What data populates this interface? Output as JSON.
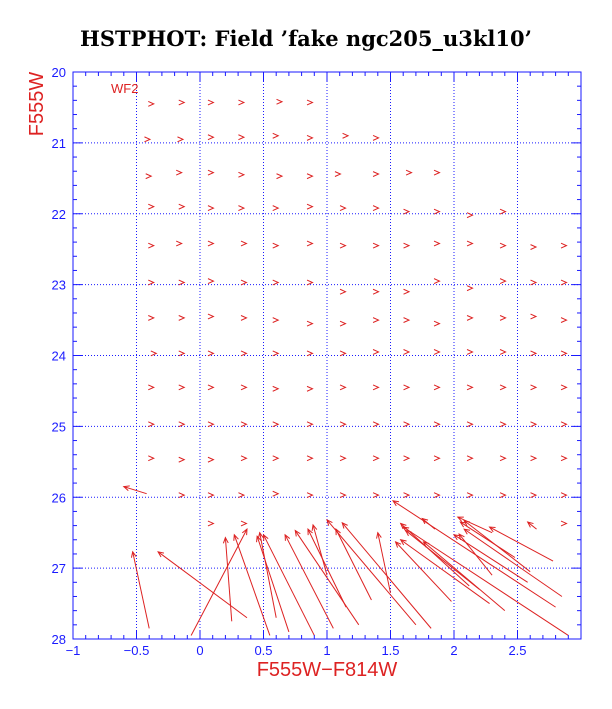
{
  "chart_data": {
    "type": "vector-field",
    "title": "HSTPHOT: Field ’fake ngc205_u3kl10’",
    "xlabel": "F555W−F814W",
    "ylabel": "F555W",
    "panel_label": "WF2",
    "xlim": [
      -1.0,
      3.0
    ],
    "ylim": [
      28.0,
      20.0
    ],
    "y_inverted": true,
    "grid": true,
    "x_ticks": [
      -1,
      -0.5,
      0,
      0.5,
      1,
      1.5,
      2,
      2.5
    ],
    "x_tick_labels": [
      "−1",
      "−0.5",
      "0",
      "0.5",
      "1",
      "1.5",
      "2",
      "2.5"
    ],
    "y_ticks": [
      20,
      21,
      22,
      23,
      24,
      25,
      26,
      27,
      28
    ],
    "y_tick_labels": [
      "20",
      "21",
      "22",
      "23",
      "24",
      "25",
      "26",
      "27",
      "28"
    ],
    "colors": {
      "arrows": "#dd2222",
      "axes": "#1a1aff",
      "labels": "#dd2222",
      "grid": "#1a1aff"
    },
    "arrows": [
      {
        "x0": -0.38,
        "y0": 20.45,
        "x1": -0.38,
        "y1": 20.45
      },
      {
        "x0": -0.14,
        "y0": 20.43,
        "x1": -0.14,
        "y1": 20.43
      },
      {
        "x0": 0.09,
        "y0": 20.43,
        "x1": 0.09,
        "y1": 20.43
      },
      {
        "x0": 0.33,
        "y0": 20.43,
        "x1": 0.33,
        "y1": 20.43
      },
      {
        "x0": 0.63,
        "y0": 20.42,
        "x1": 0.63,
        "y1": 20.42
      },
      {
        "x0": 0.87,
        "y0": 20.43,
        "x1": 0.87,
        "y1": 20.43
      },
      {
        "x0": -0.41,
        "y0": 20.95,
        "x1": -0.41,
        "y1": 20.95
      },
      {
        "x0": -0.15,
        "y0": 20.95,
        "x1": -0.15,
        "y1": 20.95
      },
      {
        "x0": 0.09,
        "y0": 20.92,
        "x1": 0.09,
        "y1": 20.92
      },
      {
        "x0": 0.33,
        "y0": 20.92,
        "x1": 0.33,
        "y1": 20.92
      },
      {
        "x0": 0.6,
        "y0": 20.9,
        "x1": 0.6,
        "y1": 20.9
      },
      {
        "x0": 0.87,
        "y0": 20.93,
        "x1": 0.87,
        "y1": 20.93
      },
      {
        "x0": 1.15,
        "y0": 20.9,
        "x1": 1.15,
        "y1": 20.9
      },
      {
        "x0": 1.39,
        "y0": 20.93,
        "x1": 1.39,
        "y1": 20.93
      },
      {
        "x0": -0.4,
        "y0": 21.47,
        "x1": -0.4,
        "y1": 21.47
      },
      {
        "x0": -0.16,
        "y0": 21.42,
        "x1": -0.16,
        "y1": 21.42
      },
      {
        "x0": 0.09,
        "y0": 21.42,
        "x1": 0.09,
        "y1": 21.42
      },
      {
        "x0": 0.33,
        "y0": 21.45,
        "x1": 0.33,
        "y1": 21.45
      },
      {
        "x0": 0.63,
        "y0": 21.47,
        "x1": 0.63,
        "y1": 21.47
      },
      {
        "x0": 0.87,
        "y0": 21.47,
        "x1": 0.87,
        "y1": 21.47
      },
      {
        "x0": 1.09,
        "y0": 21.44,
        "x1": 1.09,
        "y1": 21.44
      },
      {
        "x0": 1.39,
        "y0": 21.44,
        "x1": 1.39,
        "y1": 21.44
      },
      {
        "x0": 1.65,
        "y0": 21.42,
        "x1": 1.65,
        "y1": 21.42
      },
      {
        "x0": 1.87,
        "y0": 21.42,
        "x1": 1.87,
        "y1": 21.42
      },
      {
        "x0": -0.38,
        "y0": 21.9,
        "x1": -0.38,
        "y1": 21.9
      },
      {
        "x0": -0.14,
        "y0": 21.9,
        "x1": -0.14,
        "y1": 21.9
      },
      {
        "x0": 0.09,
        "y0": 21.92,
        "x1": 0.09,
        "y1": 21.92
      },
      {
        "x0": 0.33,
        "y0": 21.92,
        "x1": 0.33,
        "y1": 21.92
      },
      {
        "x0": 0.6,
        "y0": 21.92,
        "x1": 0.6,
        "y1": 21.92
      },
      {
        "x0": 0.87,
        "y0": 21.9,
        "x1": 0.87,
        "y1": 21.9
      },
      {
        "x0": 1.13,
        "y0": 21.92,
        "x1": 1.13,
        "y1": 21.92
      },
      {
        "x0": 1.39,
        "y0": 21.92,
        "x1": 1.39,
        "y1": 21.92
      },
      {
        "x0": 1.63,
        "y0": 21.97,
        "x1": 1.63,
        "y1": 21.97
      },
      {
        "x0": 1.87,
        "y0": 21.97,
        "x1": 1.87,
        "y1": 21.97
      },
      {
        "x0": 2.13,
        "y0": 22.02,
        "x1": 2.13,
        "y1": 22.02
      },
      {
        "x0": 2.39,
        "y0": 21.97,
        "x1": 2.39,
        "y1": 21.97
      },
      {
        "x0": -0.38,
        "y0": 22.45,
        "x1": -0.38,
        "y1": 22.45
      },
      {
        "x0": -0.16,
        "y0": 22.42,
        "x1": -0.16,
        "y1": 22.42
      },
      {
        "x0": 0.09,
        "y0": 22.42,
        "x1": 0.09,
        "y1": 22.42
      },
      {
        "x0": 0.35,
        "y0": 22.42,
        "x1": 0.35,
        "y1": 22.42
      },
      {
        "x0": 0.6,
        "y0": 22.45,
        "x1": 0.6,
        "y1": 22.45
      },
      {
        "x0": 0.87,
        "y0": 22.42,
        "x1": 0.87,
        "y1": 22.42
      },
      {
        "x0": 1.13,
        "y0": 22.45,
        "x1": 1.13,
        "y1": 22.45
      },
      {
        "x0": 1.39,
        "y0": 22.45,
        "x1": 1.39,
        "y1": 22.45
      },
      {
        "x0": 1.63,
        "y0": 22.45,
        "x1": 1.63,
        "y1": 22.45
      },
      {
        "x0": 1.87,
        "y0": 22.42,
        "x1": 1.87,
        "y1": 22.42
      },
      {
        "x0": 2.13,
        "y0": 22.42,
        "x1": 2.13,
        "y1": 22.42
      },
      {
        "x0": 2.39,
        "y0": 22.45,
        "x1": 2.39,
        "y1": 22.45
      },
      {
        "x0": 2.63,
        "y0": 22.47,
        "x1": 2.63,
        "y1": 22.47
      },
      {
        "x0": 2.87,
        "y0": 22.45,
        "x1": 2.87,
        "y1": 22.45
      },
      {
        "x0": -0.38,
        "y0": 22.97,
        "x1": -0.38,
        "y1": 22.97
      },
      {
        "x0": -0.14,
        "y0": 22.97,
        "x1": -0.14,
        "y1": 22.97
      },
      {
        "x0": 0.09,
        "y0": 22.95,
        "x1": 0.09,
        "y1": 22.95
      },
      {
        "x0": 0.35,
        "y0": 22.97,
        "x1": 0.35,
        "y1": 22.97
      },
      {
        "x0": 0.6,
        "y0": 22.97,
        "x1": 0.6,
        "y1": 22.97
      },
      {
        "x0": 0.87,
        "y0": 22.97,
        "x1": 0.87,
        "y1": 22.97
      },
      {
        "x0": 1.13,
        "y0": 23.1,
        "x1": 1.13,
        "y1": 23.1
      },
      {
        "x0": 1.39,
        "y0": 23.1,
        "x1": 1.39,
        "y1": 23.1
      },
      {
        "x0": 1.63,
        "y0": 23.1,
        "x1": 1.63,
        "y1": 23.1
      },
      {
        "x0": 1.87,
        "y0": 22.95,
        "x1": 1.87,
        "y1": 22.95
      },
      {
        "x0": 2.13,
        "y0": 23.05,
        "x1": 2.13,
        "y1": 23.05
      },
      {
        "x0": 2.39,
        "y0": 22.95,
        "x1": 2.39,
        "y1": 22.95
      },
      {
        "x0": 2.63,
        "y0": 22.97,
        "x1": 2.63,
        "y1": 22.97
      },
      {
        "x0": 2.87,
        "y0": 22.97,
        "x1": 2.87,
        "y1": 22.97
      },
      {
        "x0": -0.38,
        "y0": 23.47,
        "x1": -0.38,
        "y1": 23.47
      },
      {
        "x0": -0.14,
        "y0": 23.47,
        "x1": -0.14,
        "y1": 23.47
      },
      {
        "x0": 0.09,
        "y0": 23.45,
        "x1": 0.09,
        "y1": 23.45
      },
      {
        "x0": 0.35,
        "y0": 23.47,
        "x1": 0.35,
        "y1": 23.47
      },
      {
        "x0": 0.6,
        "y0": 23.5,
        "x1": 0.6,
        "y1": 23.5
      },
      {
        "x0": 0.87,
        "y0": 23.55,
        "x1": 0.87,
        "y1": 23.55
      },
      {
        "x0": 1.13,
        "y0": 23.55,
        "x1": 1.13,
        "y1": 23.55
      },
      {
        "x0": 1.39,
        "y0": 23.5,
        "x1": 1.39,
        "y1": 23.5
      },
      {
        "x0": 1.63,
        "y0": 23.5,
        "x1": 1.63,
        "y1": 23.5
      },
      {
        "x0": 1.87,
        "y0": 23.55,
        "x1": 1.87,
        "y1": 23.55
      },
      {
        "x0": 2.13,
        "y0": 23.47,
        "x1": 2.13,
        "y1": 23.47
      },
      {
        "x0": 2.39,
        "y0": 23.47,
        "x1": 2.39,
        "y1": 23.47
      },
      {
        "x0": 2.63,
        "y0": 23.45,
        "x1": 2.63,
        "y1": 23.45
      },
      {
        "x0": 2.87,
        "y0": 23.5,
        "x1": 2.87,
        "y1": 23.5
      },
      {
        "x0": -0.36,
        "y0": 23.97,
        "x1": -0.36,
        "y1": 23.97
      },
      {
        "x0": -0.14,
        "y0": 23.97,
        "x1": -0.14,
        "y1": 23.97
      },
      {
        "x0": 0.09,
        "y0": 23.97,
        "x1": 0.09,
        "y1": 23.97
      },
      {
        "x0": 0.35,
        "y0": 23.97,
        "x1": 0.35,
        "y1": 23.97
      },
      {
        "x0": 0.6,
        "y0": 23.97,
        "x1": 0.6,
        "y1": 23.97
      },
      {
        "x0": 0.87,
        "y0": 23.97,
        "x1": 0.87,
        "y1": 23.97
      },
      {
        "x0": 1.13,
        "y0": 23.97,
        "x1": 1.13,
        "y1": 23.97
      },
      {
        "x0": 1.39,
        "y0": 23.95,
        "x1": 1.39,
        "y1": 23.95
      },
      {
        "x0": 1.63,
        "y0": 23.95,
        "x1": 1.63,
        "y1": 23.95
      },
      {
        "x0": 1.87,
        "y0": 23.95,
        "x1": 1.87,
        "y1": 23.95
      },
      {
        "x0": 2.13,
        "y0": 23.95,
        "x1": 2.13,
        "y1": 23.95
      },
      {
        "x0": 2.39,
        "y0": 23.95,
        "x1": 2.39,
        "y1": 23.95
      },
      {
        "x0": 2.63,
        "y0": 23.97,
        "x1": 2.63,
        "y1": 23.97
      },
      {
        "x0": 2.87,
        "y0": 23.97,
        "x1": 2.87,
        "y1": 23.97
      },
      {
        "x0": -0.38,
        "y0": 24.45,
        "x1": -0.38,
        "y1": 24.45
      },
      {
        "x0": -0.14,
        "y0": 24.45,
        "x1": -0.14,
        "y1": 24.45
      },
      {
        "x0": 0.09,
        "y0": 24.45,
        "x1": 0.09,
        "y1": 24.45
      },
      {
        "x0": 0.35,
        "y0": 24.45,
        "x1": 0.35,
        "y1": 24.45
      },
      {
        "x0": 0.6,
        "y0": 24.47,
        "x1": 0.6,
        "y1": 24.47
      },
      {
        "x0": 0.87,
        "y0": 24.47,
        "x1": 0.87,
        "y1": 24.47
      },
      {
        "x0": 1.13,
        "y0": 24.45,
        "x1": 1.13,
        "y1": 24.45
      },
      {
        "x0": 1.39,
        "y0": 24.45,
        "x1": 1.39,
        "y1": 24.45
      },
      {
        "x0": 1.63,
        "y0": 24.45,
        "x1": 1.63,
        "y1": 24.45
      },
      {
        "x0": 1.87,
        "y0": 24.45,
        "x1": 1.87,
        "y1": 24.45
      },
      {
        "x0": 2.13,
        "y0": 24.45,
        "x1": 2.13,
        "y1": 24.45
      },
      {
        "x0": 2.39,
        "y0": 24.45,
        "x1": 2.39,
        "y1": 24.45
      },
      {
        "x0": 2.63,
        "y0": 24.45,
        "x1": 2.63,
        "y1": 24.45
      },
      {
        "x0": 2.87,
        "y0": 24.45,
        "x1": 2.87,
        "y1": 24.45
      },
      {
        "x0": -0.38,
        "y0": 24.97,
        "x1": -0.38,
        "y1": 24.97
      },
      {
        "x0": -0.14,
        "y0": 24.97,
        "x1": -0.14,
        "y1": 24.97
      },
      {
        "x0": 0.09,
        "y0": 24.97,
        "x1": 0.09,
        "y1": 24.97
      },
      {
        "x0": 0.35,
        "y0": 24.97,
        "x1": 0.35,
        "y1": 24.97
      },
      {
        "x0": 0.6,
        "y0": 24.97,
        "x1": 0.6,
        "y1": 24.97
      },
      {
        "x0": 0.87,
        "y0": 24.97,
        "x1": 0.87,
        "y1": 24.97
      },
      {
        "x0": 1.13,
        "y0": 24.97,
        "x1": 1.13,
        "y1": 24.97
      },
      {
        "x0": 1.39,
        "y0": 24.97,
        "x1": 1.39,
        "y1": 24.97
      },
      {
        "x0": 1.63,
        "y0": 24.97,
        "x1": 1.63,
        "y1": 24.97
      },
      {
        "x0": 1.87,
        "y0": 24.97,
        "x1": 1.87,
        "y1": 24.97
      },
      {
        "x0": 2.13,
        "y0": 24.97,
        "x1": 2.13,
        "y1": 24.97
      },
      {
        "x0": 2.39,
        "y0": 24.97,
        "x1": 2.39,
        "y1": 24.97
      },
      {
        "x0": 2.63,
        "y0": 24.97,
        "x1": 2.63,
        "y1": 24.97
      },
      {
        "x0": 2.87,
        "y0": 24.97,
        "x1": 2.87,
        "y1": 24.97
      },
      {
        "x0": -0.38,
        "y0": 25.45,
        "x1": -0.38,
        "y1": 25.45
      },
      {
        "x0": -0.14,
        "y0": 25.47,
        "x1": -0.14,
        "y1": 25.47
      },
      {
        "x0": 0.09,
        "y0": 25.47,
        "x1": 0.09,
        "y1": 25.47
      },
      {
        "x0": 0.35,
        "y0": 25.45,
        "x1": 0.35,
        "y1": 25.45
      },
      {
        "x0": 0.6,
        "y0": 25.45,
        "x1": 0.6,
        "y1": 25.45
      },
      {
        "x0": 0.87,
        "y0": 25.45,
        "x1": 0.87,
        "y1": 25.45
      },
      {
        "x0": 1.13,
        "y0": 25.45,
        "x1": 1.13,
        "y1": 25.45
      },
      {
        "x0": 1.39,
        "y0": 25.45,
        "x1": 1.39,
        "y1": 25.45
      },
      {
        "x0": 1.63,
        "y0": 25.45,
        "x1": 1.63,
        "y1": 25.45
      },
      {
        "x0": 1.87,
        "y0": 25.45,
        "x1": 1.87,
        "y1": 25.45
      },
      {
        "x0": 2.13,
        "y0": 25.45,
        "x1": 2.13,
        "y1": 25.45
      },
      {
        "x0": 2.39,
        "y0": 25.45,
        "x1": 2.39,
        "y1": 25.45
      },
      {
        "x0": 2.63,
        "y0": 25.45,
        "x1": 2.63,
        "y1": 25.45
      },
      {
        "x0": 2.87,
        "y0": 25.45,
        "x1": 2.87,
        "y1": 25.45
      },
      {
        "x0": -0.42,
        "y0": 25.95,
        "x1": -0.6,
        "y1": 25.85
      },
      {
        "x0": -0.14,
        "y0": 25.97,
        "x1": -0.14,
        "y1": 25.97
      },
      {
        "x0": 0.09,
        "y0": 25.97,
        "x1": 0.09,
        "y1": 25.97
      },
      {
        "x0": 0.33,
        "y0": 25.97,
        "x1": 0.33,
        "y1": 25.97
      },
      {
        "x0": 0.6,
        "y0": 25.95,
        "x1": 0.6,
        "y1": 25.95
      },
      {
        "x0": 0.87,
        "y0": 25.97,
        "x1": 0.87,
        "y1": 25.97
      },
      {
        "x0": 1.13,
        "y0": 25.97,
        "x1": 1.13,
        "y1": 25.97
      },
      {
        "x0": 1.39,
        "y0": 25.97,
        "x1": 1.39,
        "y1": 25.97
      },
      {
        "x0": 1.63,
        "y0": 25.97,
        "x1": 1.63,
        "y1": 25.97
      },
      {
        "x0": 1.87,
        "y0": 25.97,
        "x1": 1.87,
        "y1": 25.97
      },
      {
        "x0": 2.13,
        "y0": 25.97,
        "x1": 2.13,
        "y1": 25.97
      },
      {
        "x0": 2.39,
        "y0": 25.97,
        "x1": 2.39,
        "y1": 25.97
      },
      {
        "x0": 2.63,
        "y0": 25.97,
        "x1": 2.63,
        "y1": 25.97
      },
      {
        "x0": 2.87,
        "y0": 25.97,
        "x1": 2.87,
        "y1": 25.97
      },
      {
        "x0": 0.09,
        "y0": 26.37,
        "x1": 0.09,
        "y1": 26.37
      },
      {
        "x0": 0.35,
        "y0": 26.37,
        "x1": 0.35,
        "y1": 26.37
      },
      {
        "x0": 2.87,
        "y0": 26.37,
        "x1": 2.87,
        "y1": 26.37
      },
      {
        "x0": -0.4,
        "y0": 27.85,
        "x1": -0.53,
        "y1": 26.77
      },
      {
        "x0": 0.37,
        "y0": 27.7,
        "x1": -0.33,
        "y1": 26.77
      },
      {
        "x0": -0.07,
        "y0": 27.95,
        "x1": 0.37,
        "y1": 26.45
      },
      {
        "x0": 0.25,
        "y0": 27.75,
        "x1": 0.2,
        "y1": 26.57
      },
      {
        "x0": 0.55,
        "y0": 27.95,
        "x1": 0.27,
        "y1": 26.53
      },
      {
        "x0": 0.7,
        "y0": 27.9,
        "x1": 0.45,
        "y1": 26.55
      },
      {
        "x0": 0.6,
        "y0": 27.7,
        "x1": 0.47,
        "y1": 26.5
      },
      {
        "x0": 0.9,
        "y0": 27.95,
        "x1": 0.5,
        "y1": 26.53
      },
      {
        "x0": 1.05,
        "y0": 27.85,
        "x1": 0.67,
        "y1": 26.53
      },
      {
        "x0": 1.25,
        "y0": 27.8,
        "x1": 0.75,
        "y1": 26.47
      },
      {
        "x0": 1.15,
        "y0": 27.55,
        "x1": 0.85,
        "y1": 26.45
      },
      {
        "x0": 1.0,
        "y0": 27.1,
        "x1": 0.89,
        "y1": 26.39
      },
      {
        "x0": 1.35,
        "y0": 27.45,
        "x1": 1.07,
        "y1": 26.45
      },
      {
        "x0": 1.7,
        "y0": 27.8,
        "x1": 1.0,
        "y1": 26.32
      },
      {
        "x0": 1.82,
        "y0": 27.85,
        "x1": 1.12,
        "y1": 26.36
      },
      {
        "x0": 1.5,
        "y0": 27.35,
        "x1": 1.4,
        "y1": 26.5
      },
      {
        "x0": 1.98,
        "y0": 27.47,
        "x1": 1.54,
        "y1": 26.63
      },
      {
        "x0": 2.28,
        "y0": 27.5,
        "x1": 1.58,
        "y1": 26.6
      },
      {
        "x0": 2.2,
        "y0": 27.3,
        "x1": 1.62,
        "y1": 26.47
      },
      {
        "x0": 2.4,
        "y0": 27.6,
        "x1": 1.76,
        "y1": 26.63
      },
      {
        "x0": 2.12,
        "y0": 27.25,
        "x1": 1.58,
        "y1": 26.37
      },
      {
        "x0": 2.3,
        "y0": 27.1,
        "x1": 2.04,
        "y1": 26.52
      },
      {
        "x0": 2.58,
        "y0": 27.2,
        "x1": 2.0,
        "y1": 26.53
      },
      {
        "x0": 2.85,
        "y0": 27.4,
        "x1": 2.08,
        "y1": 26.45
      },
      {
        "x0": 2.9,
        "y0": 27.95,
        "x1": 1.6,
        "y1": 26.42
      },
      {
        "x0": 2.6,
        "y0": 27.05,
        "x1": 2.08,
        "y1": 26.33
      },
      {
        "x0": 2.48,
        "y0": 26.85,
        "x1": 2.05,
        "y1": 26.35
      },
      {
        "x0": 2.78,
        "y0": 26.9,
        "x1": 2.28,
        "y1": 26.42
      },
      {
        "x0": 2.3,
        "y0": 26.5,
        "x1": 2.03,
        "y1": 26.28
      },
      {
        "x0": 2.8,
        "y0": 27.55,
        "x1": 1.52,
        "y1": 26.05
      },
      {
        "x0": 1.85,
        "y0": 26.45,
        "x1": 1.75,
        "y1": 26.3
      },
      {
        "x0": 2.65,
        "y0": 26.45,
        "x1": 2.58,
        "y1": 26.35
      }
    ]
  }
}
